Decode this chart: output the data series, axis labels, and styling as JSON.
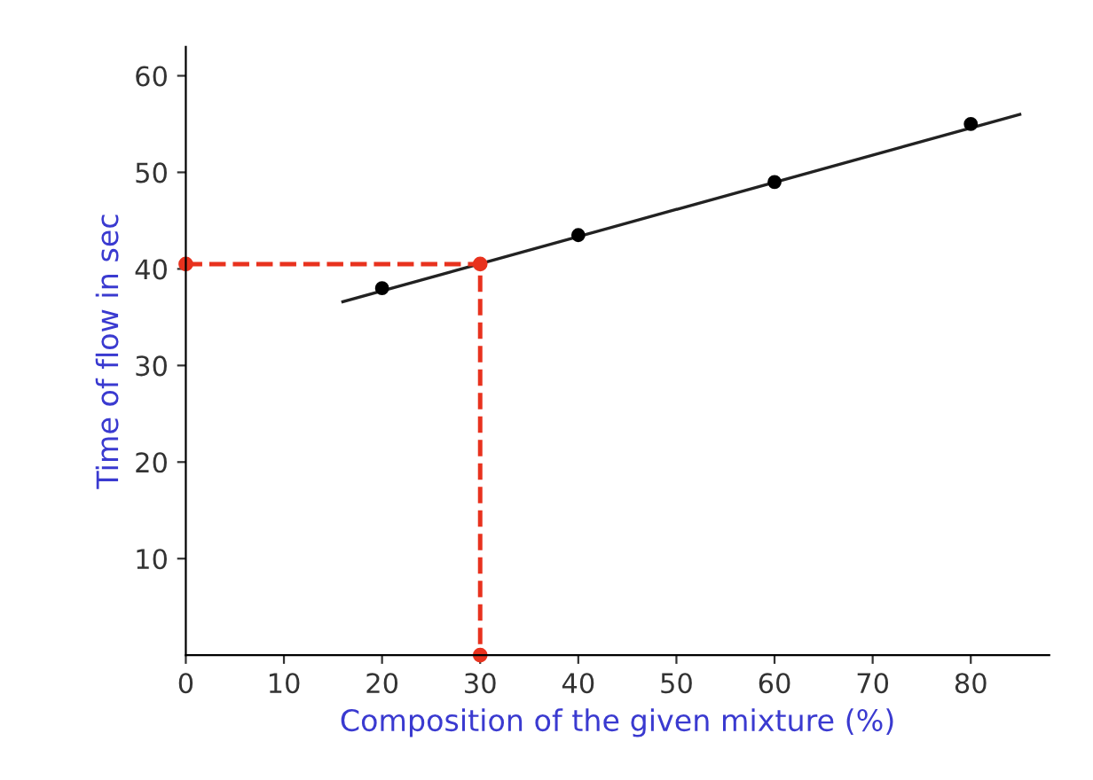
{
  "chart_data": {
    "type": "scatter",
    "xlabel": "Composition of the given mixture (%)",
    "ylabel": "Time of flow in sec",
    "xlim": [
      0,
      88
    ],
    "ylim": [
      0,
      63
    ],
    "xticks": [
      0,
      10,
      20,
      30,
      40,
      50,
      60,
      70,
      80
    ],
    "yticks": [
      10,
      20,
      30,
      40,
      50,
      60
    ],
    "grid": false,
    "series": [
      {
        "type": "line",
        "color": "#222222",
        "x": [
          16,
          85
        ],
        "values": [
          36.6,
          56
        ],
        "marker": "none",
        "line_style": "solid"
      },
      {
        "color": "#000000",
        "x": [
          20,
          40,
          60,
          80
        ],
        "values": [
          38,
          43.5,
          49,
          55
        ],
        "marker": "circle"
      },
      {
        "type": "line",
        "color": "#e8321e",
        "x": [
          0,
          30,
          30
        ],
        "values": [
          40.5,
          40.5,
          0
        ],
        "marker": "circle",
        "line_style": "dashed"
      }
    ]
  }
}
